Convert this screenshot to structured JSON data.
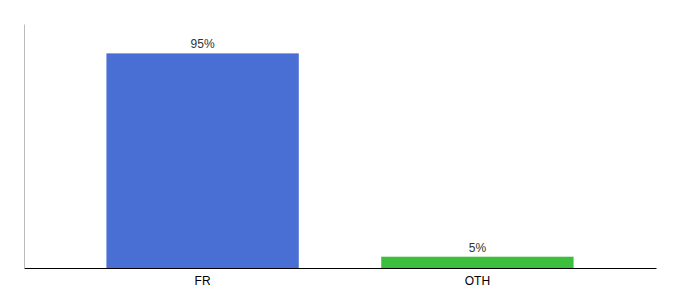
{
  "chart_data": {
    "type": "bar",
    "categories": [
      "FR",
      "OTH"
    ],
    "values": [
      95,
      5
    ],
    "value_labels": [
      "95%",
      "5%"
    ],
    "colors": [
      "#4a6fd4",
      "#3dbf3d"
    ],
    "ylim": [
      0,
      108
    ],
    "tick_labels": "x"
  }
}
